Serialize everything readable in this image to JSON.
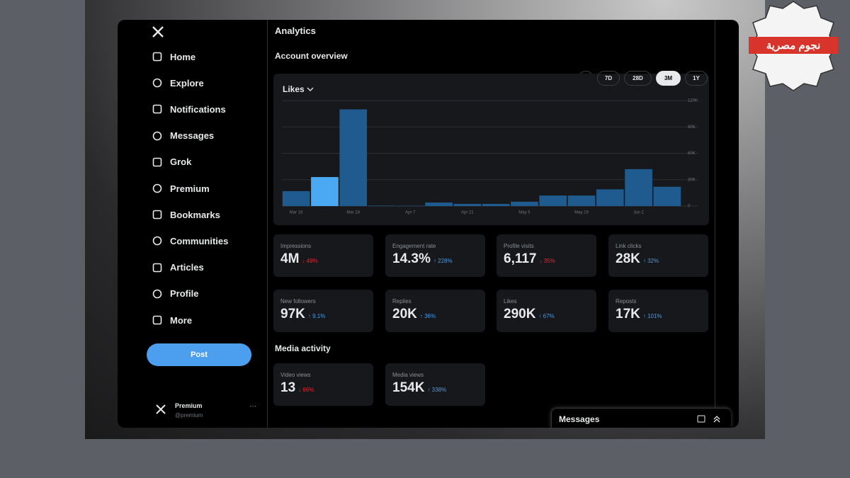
{
  "watermark": "نجوم مصرية",
  "sidebar": {
    "nav": [
      "Home",
      "Explore",
      "Notifications",
      "Messages",
      "Grok",
      "Premium",
      "Bookmarks",
      "Communities",
      "Articles",
      "Profile",
      "More"
    ],
    "post_button": "Post",
    "account": {
      "name": "Premium",
      "handle": "@premium"
    }
  },
  "header": {
    "title": "Analytics",
    "section": "Account overview",
    "ranges": [
      "7D",
      "28D",
      "3M",
      "1Y"
    ],
    "active_range": "3M"
  },
  "chart_data": {
    "type": "bar",
    "title": "Likes",
    "categories": [
      "Mar 16",
      null,
      "Mar 24",
      null,
      "Apr 7",
      null,
      "Apr 21",
      null,
      "May 5",
      null,
      "May 19",
      null,
      "Jun 2",
      null
    ],
    "values": [
      17000,
      33000,
      110000,
      500,
      300,
      4000,
      2500,
      2500,
      5000,
      12000,
      12000,
      19000,
      42000,
      22000
    ],
    "colors": [
      "#1f5b8e",
      "#4aa9f2",
      "#1f5b8e",
      "#1f5b8e",
      "#1f5b8e",
      "#1f5b8e",
      "#1f5b8e",
      "#1f5b8e",
      "#1f5b8e",
      "#1f5b8e",
      "#1f5b8e",
      "#1f5b8e",
      "#1f5b8e",
      "#1f5b8e"
    ],
    "ylim": [
      0,
      120000
    ],
    "yticks": [
      0,
      {
        "value": 30000,
        "label": "30K"
      },
      {
        "value": 60000,
        "label": "60K"
      },
      {
        "value": 90000,
        "label": "90K"
      },
      {
        "value": 120000,
        "label": "120K"
      }
    ],
    "grid": true
  },
  "stats": [
    {
      "label": "Impressions",
      "value": "4M",
      "change": "↓ 49%",
      "trend": "down"
    },
    {
      "label": "Engagement rate",
      "value": "14.3%",
      "change": "↑ 228%",
      "trend": "up"
    },
    {
      "label": "Profile visits",
      "value": "6,117",
      "change": "↓ 35%",
      "trend": "down"
    },
    {
      "label": "Link clicks",
      "value": "28K",
      "change": "↑ 32%",
      "trend": "up"
    },
    {
      "label": "New followers",
      "value": "97K",
      "change": "↑ 9.1%",
      "trend": "up"
    },
    {
      "label": "Replies",
      "value": "20K",
      "change": "↑ 36%",
      "trend": "up"
    },
    {
      "label": "Likes",
      "value": "290K",
      "change": "↑ 67%",
      "trend": "up"
    },
    {
      "label": "Reposts",
      "value": "17K",
      "change": "↑ 101%",
      "trend": "up"
    }
  ],
  "media": {
    "title": "Media activity",
    "stats": [
      {
        "label": "Video views",
        "value": "13",
        "change": "↓ 66%",
        "trend": "down"
      },
      {
        "label": "Media views",
        "value": "154K",
        "change": "↑ 338%",
        "trend": "up"
      }
    ]
  },
  "messages": {
    "title": "Messages"
  }
}
